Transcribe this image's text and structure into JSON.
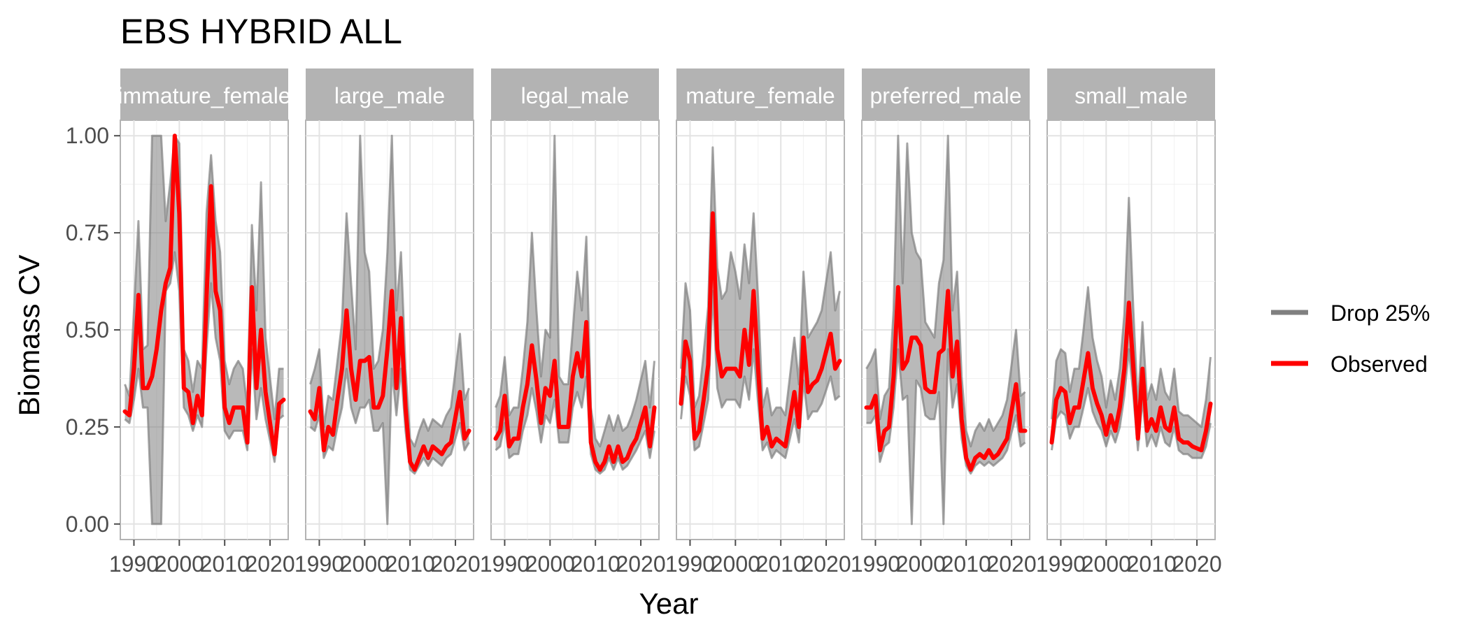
{
  "chart_data": {
    "type": "line",
    "title": "EBS HYBRID ALL",
    "xlabel": "Year",
    "ylabel": "Biomass CV",
    "xlim": [
      1987,
      2024
    ],
    "ylim": [
      -0.04,
      1.04
    ],
    "x_ticks": [
      1990,
      2000,
      2010,
      2020
    ],
    "x_tick_labels": [
      "1990",
      "2000",
      "2010",
      "2020"
    ],
    "y_ticks": [
      0.0,
      0.25,
      0.5,
      0.75,
      1.0
    ],
    "y_tick_labels": [
      "0.00",
      "0.25",
      "0.50",
      "0.75",
      "1.00"
    ],
    "grid": true,
    "legend_position": "right",
    "legend": [
      {
        "label": "Drop 25%",
        "color": "#808080"
      },
      {
        "label": "Observed",
        "color": "#ff0000"
      }
    ],
    "series_colors": {
      "drop": "#808080",
      "observed": "#ff0000"
    },
    "x": [
      1988,
      1989,
      1990,
      1991,
      1992,
      1993,
      1994,
      1995,
      1996,
      1997,
      1998,
      1999,
      2000,
      2001,
      2002,
      2003,
      2004,
      2005,
      2006,
      2007,
      2008,
      2009,
      2010,
      2011,
      2012,
      2013,
      2014,
      2015,
      2016,
      2017,
      2018,
      2019,
      2021,
      2022,
      2023
    ],
    "panels": [
      {
        "strip": "immature_female",
        "observed": [
          0.29,
          0.28,
          0.4,
          0.59,
          0.35,
          0.35,
          0.38,
          0.45,
          0.55,
          0.62,
          0.66,
          1.0,
          0.8,
          0.35,
          0.34,
          0.26,
          0.33,
          0.28,
          0.58,
          0.87,
          0.6,
          0.55,
          0.3,
          0.26,
          0.3,
          0.3,
          0.3,
          0.21,
          0.61,
          0.35,
          0.5,
          0.34,
          0.18,
          0.31,
          0.32
        ],
        "drop_low": [
          0.27,
          0.26,
          0.32,
          0.4,
          0.3,
          0.3,
          0.0,
          0.0,
          0.0,
          0.6,
          0.62,
          0.7,
          0.6,
          0.3,
          0.28,
          0.24,
          0.28,
          0.25,
          0.45,
          0.62,
          0.48,
          0.42,
          0.24,
          0.22,
          0.24,
          0.24,
          0.24,
          0.19,
          0.45,
          0.27,
          0.35,
          0.27,
          0.16,
          0.27,
          0.28
        ],
        "drop_high": [
          0.36,
          0.33,
          0.55,
          0.78,
          0.45,
          0.46,
          1.0,
          1.0,
          1.0,
          0.78,
          0.88,
          1.0,
          0.98,
          0.45,
          0.42,
          0.34,
          0.42,
          0.4,
          0.8,
          0.95,
          0.78,
          0.7,
          0.42,
          0.36,
          0.4,
          0.42,
          0.4,
          0.3,
          0.77,
          0.55,
          0.88,
          0.48,
          0.27,
          0.4,
          0.4
        ]
      },
      {
        "strip": "large_male",
        "observed": [
          0.29,
          0.27,
          0.35,
          0.19,
          0.25,
          0.23,
          0.32,
          0.4,
          0.55,
          0.4,
          0.32,
          0.42,
          0.42,
          0.43,
          0.3,
          0.3,
          0.33,
          0.45,
          0.6,
          0.35,
          0.53,
          0.3,
          0.16,
          0.14,
          0.17,
          0.2,
          0.17,
          0.2,
          0.19,
          0.18,
          0.2,
          0.21,
          0.34,
          0.22,
          0.24
        ],
        "drop_low": [
          0.25,
          0.24,
          0.28,
          0.17,
          0.2,
          0.19,
          0.25,
          0.3,
          0.4,
          0.3,
          0.26,
          0.3,
          0.3,
          0.32,
          0.24,
          0.24,
          0.26,
          0.0,
          0.4,
          0.28,
          0.4,
          0.24,
          0.14,
          0.13,
          0.15,
          0.17,
          0.15,
          0.17,
          0.16,
          0.15,
          0.17,
          0.18,
          0.26,
          0.19,
          0.21
        ],
        "drop_high": [
          0.36,
          0.4,
          0.45,
          0.25,
          0.33,
          0.32,
          0.42,
          0.52,
          0.8,
          0.62,
          0.45,
          1.0,
          0.7,
          0.65,
          0.4,
          0.42,
          0.5,
          0.7,
          1.0,
          0.55,
          0.7,
          0.4,
          0.22,
          0.2,
          0.24,
          0.27,
          0.24,
          0.27,
          0.26,
          0.25,
          0.28,
          0.3,
          0.49,
          0.32,
          0.35
        ]
      },
      {
        "strip": "legal_male",
        "observed": [
          0.22,
          0.24,
          0.33,
          0.2,
          0.22,
          0.22,
          0.3,
          0.36,
          0.46,
          0.37,
          0.26,
          0.35,
          0.33,
          0.42,
          0.25,
          0.25,
          0.25,
          0.38,
          0.44,
          0.38,
          0.52,
          0.21,
          0.16,
          0.14,
          0.16,
          0.2,
          0.16,
          0.2,
          0.16,
          0.17,
          0.2,
          0.22,
          0.3,
          0.2,
          0.3
        ],
        "drop_low": [
          0.19,
          0.2,
          0.26,
          0.17,
          0.18,
          0.18,
          0.24,
          0.28,
          0.35,
          0.29,
          0.21,
          0.28,
          0.26,
          0.32,
          0.21,
          0.21,
          0.21,
          0.3,
          0.34,
          0.3,
          0.38,
          0.18,
          0.14,
          0.13,
          0.14,
          0.17,
          0.14,
          0.17,
          0.14,
          0.15,
          0.17,
          0.19,
          0.24,
          0.17,
          0.24
        ],
        "drop_high": [
          0.3,
          0.33,
          0.43,
          0.28,
          0.3,
          0.3,
          0.4,
          0.52,
          0.75,
          0.55,
          0.38,
          0.5,
          0.48,
          1.0,
          0.38,
          0.36,
          0.36,
          0.5,
          0.65,
          0.55,
          0.74,
          0.3,
          0.22,
          0.2,
          0.24,
          0.28,
          0.24,
          0.28,
          0.24,
          0.25,
          0.28,
          0.32,
          0.42,
          0.3,
          0.42
        ]
      },
      {
        "strip": "mature_female",
        "observed": [
          0.31,
          0.47,
          0.42,
          0.22,
          0.24,
          0.32,
          0.41,
          0.8,
          0.45,
          0.38,
          0.4,
          0.4,
          0.4,
          0.38,
          0.5,
          0.41,
          0.6,
          0.4,
          0.22,
          0.25,
          0.2,
          0.22,
          0.21,
          0.2,
          0.27,
          0.34,
          0.25,
          0.48,
          0.34,
          0.36,
          0.37,
          0.4,
          0.49,
          0.4,
          0.42
        ],
        "drop_low": [
          0.27,
          0.38,
          0.33,
          0.19,
          0.2,
          0.26,
          0.32,
          0.6,
          0.35,
          0.3,
          0.32,
          0.32,
          0.32,
          0.3,
          0.38,
          0.32,
          0.45,
          0.31,
          0.19,
          0.21,
          0.17,
          0.19,
          0.18,
          0.17,
          0.22,
          0.27,
          0.21,
          0.37,
          0.27,
          0.29,
          0.29,
          0.31,
          0.38,
          0.32,
          0.33
        ],
        "drop_high": [
          0.4,
          0.62,
          0.55,
          0.3,
          0.33,
          0.44,
          0.56,
          0.97,
          0.66,
          0.58,
          0.6,
          0.7,
          0.65,
          0.58,
          0.72,
          0.62,
          0.8,
          0.58,
          0.3,
          0.35,
          0.28,
          0.3,
          0.3,
          0.28,
          0.38,
          0.48,
          0.36,
          0.65,
          0.48,
          0.5,
          0.52,
          0.55,
          0.7,
          0.55,
          0.6
        ]
      },
      {
        "strip": "preferred_male",
        "observed": [
          0.3,
          0.3,
          0.33,
          0.19,
          0.24,
          0.25,
          0.38,
          0.61,
          0.4,
          0.42,
          0.48,
          0.48,
          0.46,
          0.35,
          0.34,
          0.34,
          0.44,
          0.45,
          0.6,
          0.38,
          0.47,
          0.27,
          0.17,
          0.14,
          0.17,
          0.18,
          0.17,
          0.19,
          0.17,
          0.18,
          0.2,
          0.22,
          0.36,
          0.24,
          0.24
        ],
        "drop_low": [
          0.26,
          0.26,
          0.28,
          0.16,
          0.2,
          0.21,
          0.3,
          0.45,
          0.32,
          0.33,
          0.0,
          0.37,
          0.35,
          0.28,
          0.27,
          0.27,
          0.34,
          0.0,
          0.45,
          0.3,
          0.36,
          0.22,
          0.15,
          0.13,
          0.15,
          0.16,
          0.15,
          0.16,
          0.15,
          0.16,
          0.17,
          0.19,
          0.28,
          0.2,
          0.21
        ],
        "drop_high": [
          0.4,
          0.42,
          0.45,
          0.27,
          0.33,
          0.35,
          0.55,
          1.0,
          0.62,
          0.98,
          0.75,
          0.7,
          0.68,
          0.52,
          0.5,
          0.48,
          0.62,
          0.68,
          1.0,
          0.55,
          0.65,
          0.38,
          0.24,
          0.2,
          0.24,
          0.26,
          0.24,
          0.27,
          0.24,
          0.26,
          0.28,
          0.32,
          0.5,
          0.33,
          0.34
        ]
      },
      {
        "strip": "small_male",
        "observed": [
          0.21,
          0.32,
          0.35,
          0.34,
          0.26,
          0.3,
          0.3,
          0.37,
          0.44,
          0.35,
          0.31,
          0.28,
          0.23,
          0.28,
          0.24,
          0.3,
          0.4,
          0.57,
          0.4,
          0.22,
          0.4,
          0.24,
          0.27,
          0.24,
          0.3,
          0.25,
          0.24,
          0.3,
          0.22,
          0.21,
          0.21,
          0.2,
          0.19,
          0.24,
          0.31
        ],
        "drop_low": [
          0.19,
          0.27,
          0.29,
          0.28,
          0.22,
          0.25,
          0.25,
          0.3,
          0.35,
          0.29,
          0.26,
          0.24,
          0.2,
          0.24,
          0.21,
          0.25,
          0.33,
          0.45,
          0.33,
          0.19,
          0.32,
          0.2,
          0.23,
          0.2,
          0.25,
          0.21,
          0.2,
          0.25,
          0.19,
          0.18,
          0.18,
          0.17,
          0.17,
          0.2,
          0.26
        ],
        "drop_high": [
          0.27,
          0.42,
          0.45,
          0.44,
          0.34,
          0.4,
          0.4,
          0.5,
          0.61,
          0.48,
          0.42,
          0.38,
          0.3,
          0.37,
          0.32,
          0.4,
          0.54,
          0.84,
          0.55,
          0.3,
          0.52,
          0.32,
          0.36,
          0.32,
          0.4,
          0.34,
          0.32,
          0.4,
          0.29,
          0.28,
          0.28,
          0.27,
          0.25,
          0.32,
          0.43
        ]
      }
    ]
  }
}
